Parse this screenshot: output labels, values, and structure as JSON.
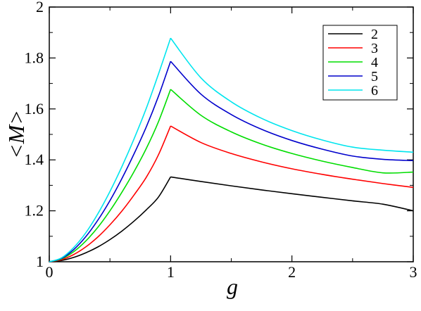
{
  "chart_data": {
    "type": "line",
    "title": "",
    "xlabel": "g",
    "ylabel": "<M>",
    "xlim": [
      0,
      3
    ],
    "ylim": [
      1,
      2
    ],
    "xticks": [
      0,
      1,
      2,
      3
    ],
    "xtick_labels": [
      "0",
      "1",
      "2",
      "3"
    ],
    "yticks": [
      1,
      1.2,
      1.4,
      1.6,
      1.8,
      2
    ],
    "ytick_labels": [
      "1",
      "1.2",
      "1.4",
      "1.6",
      "1.8",
      "2"
    ],
    "grid": false,
    "legend_position": "top-right",
    "series": [
      {
        "name": "2",
        "color": "#000000",
        "x": [
          0,
          0.1,
          0.2,
          0.3,
          0.4,
          0.5,
          0.6,
          0.7,
          0.8,
          0.9,
          1.0,
          1.25,
          1.5,
          1.75,
          2.0,
          2.25,
          2.5,
          2.75,
          3.0
        ],
        "y": [
          1.0,
          1.005,
          1.017,
          1.035,
          1.058,
          1.087,
          1.121,
          1.16,
          1.204,
          1.254,
          1.333,
          1.315,
          1.298,
          1.282,
          1.267,
          1.253,
          1.239,
          1.226,
          1.2
        ]
      },
      {
        "name": "3",
        "color": "#ff0000",
        "x": [
          0,
          0.1,
          0.2,
          0.3,
          0.4,
          0.5,
          0.6,
          0.7,
          0.8,
          0.9,
          1.0,
          1.25,
          1.5,
          1.75,
          2.0,
          2.25,
          2.5,
          2.75,
          3.0
        ],
        "y": [
          1.0,
          1.008,
          1.028,
          1.058,
          1.097,
          1.145,
          1.2,
          1.263,
          1.332,
          1.42,
          1.533,
          1.468,
          1.425,
          1.392,
          1.365,
          1.343,
          1.324,
          1.307,
          1.292
        ]
      },
      {
        "name": "4",
        "color": "#00dd00",
        "x": [
          0,
          0.1,
          0.2,
          0.3,
          0.4,
          0.5,
          0.6,
          0.7,
          0.8,
          0.9,
          1.0,
          1.25,
          1.5,
          1.75,
          2.0,
          2.25,
          2.5,
          2.75,
          3.0
        ],
        "y": [
          1.0,
          1.011,
          1.039,
          1.081,
          1.135,
          1.2,
          1.274,
          1.355,
          1.445,
          1.55,
          1.677,
          1.575,
          1.51,
          1.462,
          1.425,
          1.395,
          1.37,
          1.349,
          1.352
        ]
      },
      {
        "name": "5",
        "color": "#0000cc",
        "x": [
          0,
          0.1,
          0.2,
          0.3,
          0.4,
          0.5,
          0.6,
          0.7,
          0.8,
          0.9,
          1.0,
          1.25,
          1.5,
          1.75,
          2.0,
          2.25,
          2.5,
          2.75,
          3.0
        ],
        "y": [
          1.0,
          1.013,
          1.047,
          1.098,
          1.163,
          1.24,
          1.328,
          1.425,
          1.53,
          1.65,
          1.787,
          1.658,
          1.578,
          1.52,
          1.476,
          1.442,
          1.415,
          1.402,
          1.397
        ]
      },
      {
        "name": "6",
        "color": "#00e5ee",
        "x": [
          0,
          0.1,
          0.2,
          0.3,
          0.4,
          0.5,
          0.6,
          0.7,
          0.8,
          0.9,
          1.0,
          1.25,
          1.5,
          1.75,
          2.0,
          2.25,
          2.5,
          2.75,
          3.0
        ],
        "y": [
          1.0,
          1.015,
          1.055,
          1.113,
          1.188,
          1.276,
          1.375,
          1.484,
          1.603,
          1.737,
          1.878,
          1.722,
          1.628,
          1.563,
          1.515,
          1.478,
          1.45,
          1.438,
          1.43
        ]
      }
    ]
  }
}
